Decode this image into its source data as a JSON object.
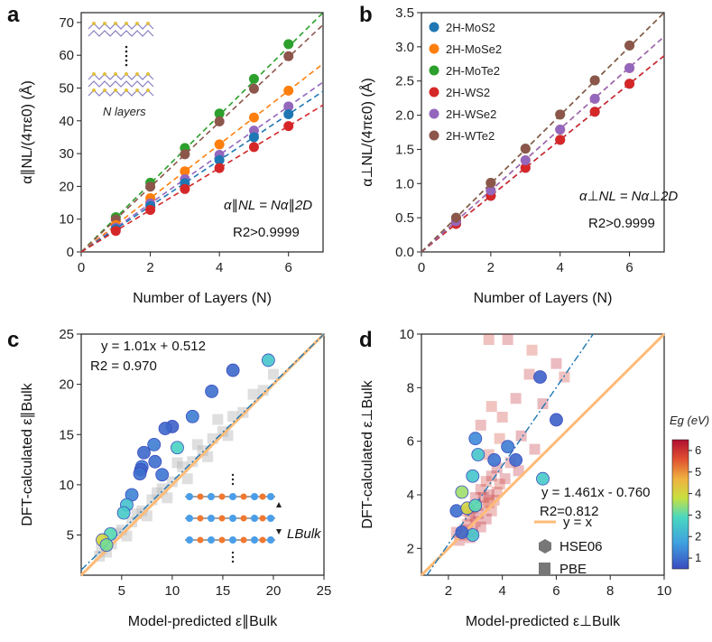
{
  "panels": {
    "a": {
      "label": "a",
      "ylabel": "α∥NL/(4πε0) (Å)",
      "xlabel": "Number of Layers (N)",
      "eq": "α∥NL = Nα∥2D",
      "r2": "R2>0.9999",
      "inset_label": "N layers"
    },
    "b": {
      "label": "b",
      "ylabel": "α⊥NL/(4πε0) (Å)",
      "xlabel": "Number of Layers (N)",
      "eq": "α⊥NL = Nα⊥2D",
      "r2": "R2>0.9999"
    },
    "c": {
      "label": "c",
      "ylabel": "DFT-calculated ε∥Bulk",
      "xlabel": "Model-predicted ε∥Bulk",
      "fit": "y = 1.01x + 0.512",
      "r2": "R2 = 0.970",
      "inset_label": "LBulk"
    },
    "d": {
      "label": "d",
      "ylabel": "DFT-calculated ε⊥Bulk",
      "xlabel": "Model-predicted ε⊥Bulk",
      "fit": "y = 1.461x - 0.760",
      "r2": "R2=0.812",
      "legend": [
        "y = x",
        "HSE06",
        "PBE"
      ],
      "colorbar_label": "Eg (eV)",
      "colorbar_ticks": [
        "1",
        "2",
        "3",
        "4",
        "5",
        "6"
      ]
    }
  },
  "colors": {
    "MoS2": "#1f77b4",
    "MoSe2": "#ff7f0e",
    "MoTe2": "#2ca02c",
    "WS2": "#d62728",
    "WSe2": "#9467bd",
    "WTe2": "#8c564b",
    "yx": "#ffbb78",
    "fit": "#1f77b4"
  },
  "chart_data": [
    {
      "panel": "a",
      "type": "scatter",
      "xlabel": "Number of Layers (N)",
      "ylabel": "α∥NL/(4πε0) (Å)",
      "xlim": [
        0,
        7
      ],
      "ylim": [
        0,
        73
      ],
      "xticks": [
        0,
        2,
        4,
        6
      ],
      "yticks": [
        0,
        10,
        20,
        30,
        40,
        50,
        60,
        70
      ],
      "x": [
        1,
        2,
        3,
        4,
        5,
        6
      ],
      "series": [
        {
          "name": "2H-MoTe2",
          "values": [
            10.6,
            21.1,
            31.7,
            42.2,
            52.8,
            63.4
          ]
        },
        {
          "name": "2H-WTe2",
          "values": [
            9.9,
            19.9,
            29.8,
            39.8,
            49.8,
            59.7
          ]
        },
        {
          "name": "2H-MoSe2",
          "values": [
            8.2,
            16.4,
            24.6,
            32.8,
            41.0,
            49.2
          ]
        },
        {
          "name": "2H-WSe2",
          "values": [
            7.4,
            14.8,
            22.2,
            29.6,
            37.0,
            44.4
          ]
        },
        {
          "name": "2H-MoS2",
          "values": [
            7.0,
            14.0,
            21.0,
            28.0,
            35.0,
            42.0
          ]
        },
        {
          "name": "2H-WS2",
          "values": [
            6.4,
            12.8,
            19.2,
            25.6,
            32.0,
            38.4
          ]
        }
      ]
    },
    {
      "panel": "b",
      "type": "scatter",
      "xlabel": "Number of Layers (N)",
      "ylabel": "α⊥NL/(4πε0) (Å)",
      "xlim": [
        0,
        7
      ],
      "ylim": [
        0,
        3.5
      ],
      "xticks": [
        0,
        2,
        4,
        6
      ],
      "yticks": [
        0,
        0.5,
        1.0,
        1.5,
        2.0,
        2.5,
        3.0,
        3.5
      ],
      "x": [
        1,
        2,
        3,
        4,
        5,
        6
      ],
      "legend": [
        "2H-MoS2",
        "2H-MoSe2",
        "2H-MoTe2",
        "2H-WS2",
        "2H-WSe2",
        "2H-WTe2"
      ],
      "series": [
        {
          "name": "2H-MoS2",
          "values": [
            0.41,
            0.82,
            1.23,
            1.64,
            2.05,
            2.46
          ]
        },
        {
          "name": "2H-MoSe2",
          "values": [
            0.45,
            0.9,
            1.34,
            1.79,
            2.24,
            2.69
          ]
        },
        {
          "name": "2H-MoTe2",
          "values": [
            0.5,
            1.01,
            1.51,
            2.01,
            2.51,
            3.02
          ]
        },
        {
          "name": "2H-WS2",
          "values": [
            0.41,
            0.82,
            1.23,
            1.64,
            2.05,
            2.46
          ]
        },
        {
          "name": "2H-WSe2",
          "values": [
            0.45,
            0.9,
            1.34,
            1.79,
            2.24,
            2.69
          ]
        },
        {
          "name": "2H-WTe2",
          "values": [
            0.5,
            1.01,
            1.51,
            2.01,
            2.51,
            3.02
          ]
        }
      ]
    },
    {
      "panel": "c",
      "type": "scatter",
      "xlabel": "Model-predicted ε∥Bulk",
      "ylabel": "DFT-calculated ε∥Bulk",
      "xlim": [
        1,
        25
      ],
      "ylim": [
        1,
        25
      ],
      "xticks": [
        5,
        10,
        15,
        20,
        25
      ],
      "yticks": [
        5,
        10,
        15,
        20,
        25
      ],
      "fit": {
        "slope": 1.01,
        "intercept": 0.512
      },
      "hse06": [
        {
          "x": 16.0,
          "y": 21.4,
          "eg": 0.9
        },
        {
          "x": 13.9,
          "y": 19.3,
          "eg": 1.0
        },
        {
          "x": 19.5,
          "y": 22.4,
          "eg": 2.5
        },
        {
          "x": 12.0,
          "y": 16.8,
          "eg": 1.2
        },
        {
          "x": 10.0,
          "y": 15.8,
          "eg": 0.8
        },
        {
          "x": 9.3,
          "y": 15.6,
          "eg": 0.9
        },
        {
          "x": 8.2,
          "y": 14.0,
          "eg": 1.2
        },
        {
          "x": 10.5,
          "y": 13.7,
          "eg": 2.8
        },
        {
          "x": 7.2,
          "y": 13.2,
          "eg": 0.9
        },
        {
          "x": 8.3,
          "y": 12.3,
          "eg": 1.0
        },
        {
          "x": 7.0,
          "y": 11.8,
          "eg": 1.2
        },
        {
          "x": 6.9,
          "y": 11.5,
          "eg": 0.8
        },
        {
          "x": 6.8,
          "y": 11.1,
          "eg": 1.0
        },
        {
          "x": 9.0,
          "y": 11.0,
          "eg": 1.1
        },
        {
          "x": 6.0,
          "y": 9.0,
          "eg": 1.3
        },
        {
          "x": 5.5,
          "y": 8.0,
          "eg": 2.4
        },
        {
          "x": 5.2,
          "y": 7.2,
          "eg": 2.6
        },
        {
          "x": 3.9,
          "y": 5.1,
          "eg": 3.0
        },
        {
          "x": 3.1,
          "y": 4.5,
          "eg": 4.0
        },
        {
          "x": 3.5,
          "y": 4.0,
          "eg": 3.2
        }
      ],
      "pbe": [
        {
          "x": 3.0,
          "y": 3.6
        },
        {
          "x": 4.0,
          "y": 4.1
        },
        {
          "x": 5.0,
          "y": 5.5
        },
        {
          "x": 6.0,
          "y": 6.3
        },
        {
          "x": 7.0,
          "y": 7.4
        },
        {
          "x": 8.0,
          "y": 8.5
        },
        {
          "x": 9.0,
          "y": 9.6
        },
        {
          "x": 10.0,
          "y": 10.3
        },
        {
          "x": 11.0,
          "y": 11.8
        },
        {
          "x": 12.0,
          "y": 12.3
        },
        {
          "x": 13.0,
          "y": 13.4
        },
        {
          "x": 14.0,
          "y": 14.6
        },
        {
          "x": 15.0,
          "y": 15.3
        },
        {
          "x": 16.0,
          "y": 16.8
        },
        {
          "x": 17.0,
          "y": 17.2
        },
        {
          "x": 18.0,
          "y": 19.0
        },
        {
          "x": 19.0,
          "y": 19.4
        },
        {
          "x": 20.0,
          "y": 21.0
        },
        {
          "x": 5.5,
          "y": 4.9
        },
        {
          "x": 7.5,
          "y": 6.9
        },
        {
          "x": 9.5,
          "y": 8.7
        },
        {
          "x": 11.5,
          "y": 10.6
        },
        {
          "x": 13.5,
          "y": 12.8
        },
        {
          "x": 15.5,
          "y": 14.9
        },
        {
          "x": 4.5,
          "y": 5.2
        },
        {
          "x": 6.5,
          "y": 7.1
        },
        {
          "x": 8.5,
          "y": 9.2
        },
        {
          "x": 12.5,
          "y": 14.0
        },
        {
          "x": 14.5,
          "y": 16.5
        },
        {
          "x": 10.5,
          "y": 12.2
        },
        {
          "x": 2.8,
          "y": 2.9
        },
        {
          "x": 3.5,
          "y": 3.3
        }
      ]
    },
    {
      "panel": "d",
      "type": "scatter",
      "xlabel": "Model-predicted ε⊥Bulk",
      "ylabel": "DFT-calculated ε⊥Bulk",
      "xlim": [
        1,
        10
      ],
      "ylim": [
        1,
        10
      ],
      "xticks": [
        2,
        4,
        6,
        8,
        10
      ],
      "yticks": [
        2,
        4,
        6,
        8,
        10
      ],
      "fit": {
        "slope": 1.461,
        "intercept": -0.76
      },
      "colorbar": {
        "label": "Eg (eV)",
        "min": 0.5,
        "max": 6.5
      },
      "hse06": [
        {
          "x": 5.4,
          "y": 8.4,
          "eg": 0.8
        },
        {
          "x": 3.0,
          "y": 6.1,
          "eg": 1.4
        },
        {
          "x": 4.2,
          "y": 5.8,
          "eg": 1.2
        },
        {
          "x": 4.5,
          "y": 5.3,
          "eg": 0.9
        },
        {
          "x": 3.7,
          "y": 5.3,
          "eg": 1.1
        },
        {
          "x": 6.0,
          "y": 6.8,
          "eg": 0.8
        },
        {
          "x": 3.1,
          "y": 5.5,
          "eg": 2.5
        },
        {
          "x": 2.9,
          "y": 4.7,
          "eg": 2.5
        },
        {
          "x": 5.5,
          "y": 4.6,
          "eg": 2.6
        },
        {
          "x": 2.5,
          "y": 4.1,
          "eg": 3.5
        },
        {
          "x": 2.3,
          "y": 3.4,
          "eg": 1.0
        },
        {
          "x": 2.7,
          "y": 3.5,
          "eg": 4.0
        },
        {
          "x": 3.0,
          "y": 3.6,
          "eg": 3.0
        },
        {
          "x": 2.9,
          "y": 2.5,
          "eg": 2.5
        },
        {
          "x": 2.5,
          "y": 2.6,
          "eg": 0.9
        }
      ],
      "pbe": [
        {
          "x": 3.5,
          "y": 10.0,
          "eg": 6.0
        },
        {
          "x": 4.2,
          "y": 9.9,
          "eg": 6.2
        },
        {
          "x": 5.1,
          "y": 9.4,
          "eg": 5.8
        },
        {
          "x": 6.0,
          "y": 8.9,
          "eg": 6.3
        },
        {
          "x": 6.3,
          "y": 8.4,
          "eg": 6.0
        },
        {
          "x": 5.0,
          "y": 8.5,
          "eg": 6.1
        },
        {
          "x": 4.5,
          "y": 7.6,
          "eg": 6.2
        },
        {
          "x": 3.6,
          "y": 7.3,
          "eg": 5.9
        },
        {
          "x": 5.5,
          "y": 7.4,
          "eg": 6.4
        },
        {
          "x": 4.0,
          "y": 6.9,
          "eg": 6.0
        },
        {
          "x": 3.2,
          "y": 6.6,
          "eg": 6.1
        },
        {
          "x": 4.7,
          "y": 6.2,
          "eg": 6.3
        },
        {
          "x": 3.9,
          "y": 6.1,
          "eg": 5.8
        },
        {
          "x": 5.2,
          "y": 5.7,
          "eg": 6.2
        },
        {
          "x": 3.5,
          "y": 5.5,
          "eg": 6.0
        },
        {
          "x": 4.3,
          "y": 5.2,
          "eg": 6.1
        },
        {
          "x": 3.8,
          "y": 5.0,
          "eg": 6.4
        },
        {
          "x": 3.6,
          "y": 4.7,
          "eg": 6.2
        },
        {
          "x": 3.4,
          "y": 4.5,
          "eg": 6.0
        },
        {
          "x": 3.9,
          "y": 4.4,
          "eg": 5.9
        },
        {
          "x": 3.2,
          "y": 4.2,
          "eg": 6.1
        },
        {
          "x": 3.5,
          "y": 4.0,
          "eg": 6.3
        },
        {
          "x": 3.0,
          "y": 3.9,
          "eg": 6.2
        },
        {
          "x": 3.7,
          "y": 3.8,
          "eg": 6.0
        },
        {
          "x": 3.3,
          "y": 3.6,
          "eg": 6.1
        },
        {
          "x": 2.9,
          "y": 3.5,
          "eg": 6.2
        },
        {
          "x": 3.6,
          "y": 3.4,
          "eg": 6.0
        },
        {
          "x": 3.1,
          "y": 3.3,
          "eg": 6.4
        },
        {
          "x": 2.8,
          "y": 3.2,
          "eg": 6.1
        },
        {
          "x": 3.4,
          "y": 3.1,
          "eg": 6.3
        },
        {
          "x": 3.0,
          "y": 3.0,
          "eg": 6.2
        },
        {
          "x": 2.7,
          "y": 2.9,
          "eg": 6.0
        },
        {
          "x": 3.2,
          "y": 2.8,
          "eg": 6.1
        },
        {
          "x": 2.6,
          "y": 2.7,
          "eg": 6.2
        },
        {
          "x": 2.9,
          "y": 2.6,
          "eg": 6.3
        },
        {
          "x": 2.5,
          "y": 2.5,
          "eg": 6.0
        },
        {
          "x": 2.8,
          "y": 2.4,
          "eg": 6.1
        },
        {
          "x": 2.4,
          "y": 2.3,
          "eg": 6.2
        },
        {
          "x": 3.5,
          "y": 3.7,
          "eg": 5.5
        },
        {
          "x": 3.8,
          "y": 4.1,
          "eg": 6.0
        },
        {
          "x": 4.1,
          "y": 4.6,
          "eg": 6.2
        },
        {
          "x": 2.3,
          "y": 2.6,
          "eg": 6.1
        },
        {
          "x": 3.3,
          "y": 3.9,
          "eg": 6.2
        },
        {
          "x": 2.7,
          "y": 3.4,
          "eg": 6.0
        },
        {
          "x": 4.6,
          "y": 4.9,
          "eg": 6.3
        }
      ]
    }
  ]
}
